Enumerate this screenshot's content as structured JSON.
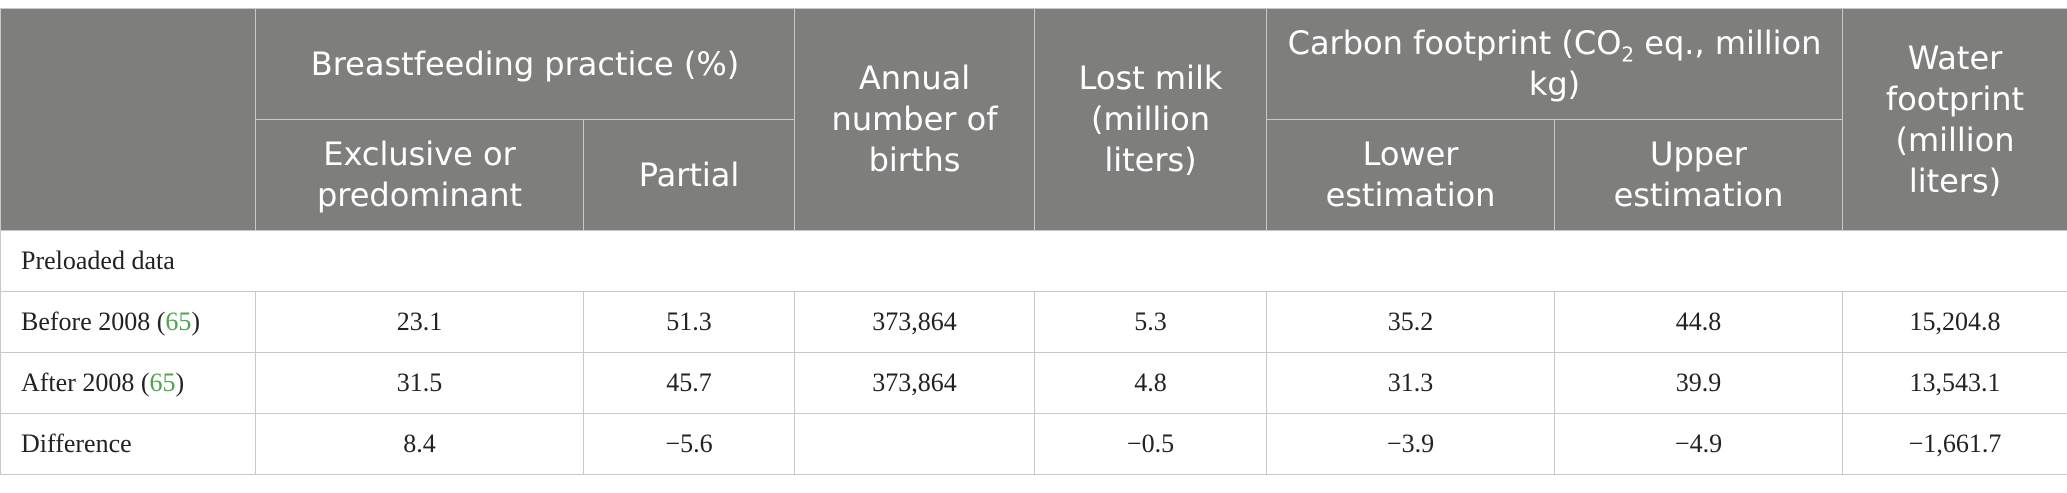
{
  "header": {
    "group_breastfeeding": "Breastfeeding practice (%)",
    "col_exclusive": "Exclusive or predominant",
    "col_partial": "Partial",
    "col_births": "Annual number of births",
    "col_lost_milk": "Lost milk (million liters)",
    "group_carbon_prefix": "Carbon footprint (CO",
    "group_carbon_sub": "2",
    "group_carbon_suffix": " eq., million kg)",
    "col_lower": "Lower estimation",
    "col_upper": "Upper estimation",
    "col_water": "Water footprint (million liters)"
  },
  "section_label": "Preloaded data",
  "rows": [
    {
      "label": "Before 2008 (",
      "ref": "65",
      "label_end": ")",
      "exclusive": "23.1",
      "partial": "51.3",
      "births": "373,864",
      "lost_milk": "5.3",
      "lower": "35.2",
      "upper": "44.8",
      "water": "15,204.8"
    },
    {
      "label": "After 2008 (",
      "ref": "65",
      "label_end": ")",
      "exclusive": "31.5",
      "partial": "45.7",
      "births": "373,864",
      "lost_milk": "4.8",
      "lower": "31.3",
      "upper": "39.9",
      "water": "13,543.1"
    },
    {
      "label": "Difference",
      "ref": "",
      "label_end": "",
      "exclusive": "8.4",
      "partial": "−5.6",
      "births": "",
      "lost_milk": "−0.5",
      "lower": "−3.9",
      "upper": "−4.9",
      "water": "−1,661.7"
    }
  ]
}
